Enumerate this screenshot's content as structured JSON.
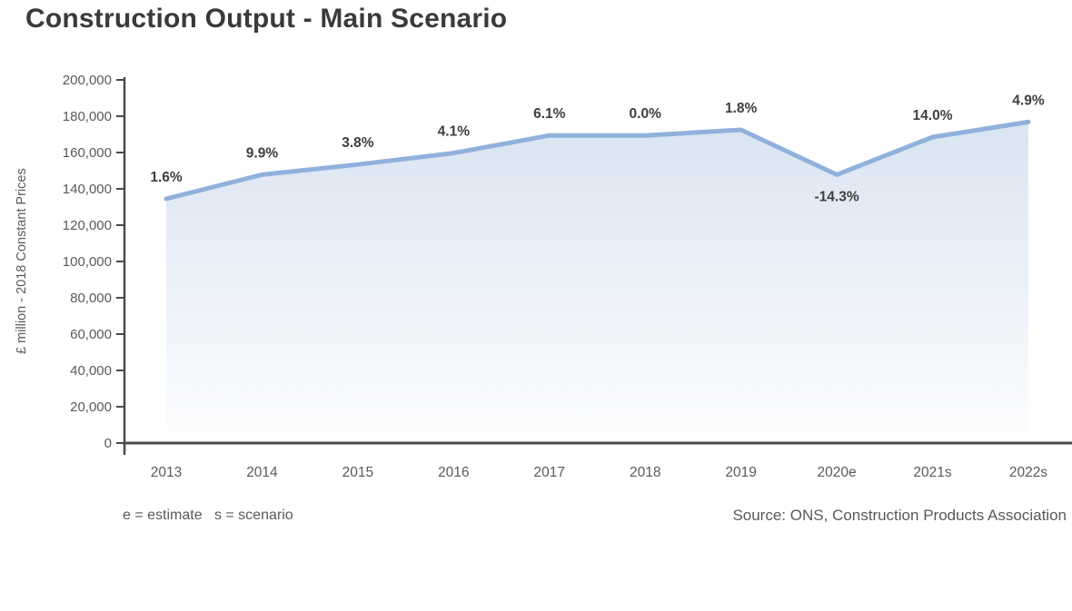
{
  "title": "Construction Output - Main Scenario",
  "footer": {
    "note": "e = estimate   s = scenario",
    "source": "Source: ONS, Construction Products Association"
  },
  "chart_data": {
    "type": "area",
    "title": "Construction Output - Main Scenario",
    "xlabel": "",
    "ylabel": "£ million - 2018 Constant Prices",
    "categories": [
      "2013",
      "2014",
      "2015",
      "2016",
      "2017",
      "2018",
      "2019",
      "2020e",
      "2021s",
      "2022s"
    ],
    "values": [
      134500,
      147800,
      153400,
      159700,
      169400,
      169400,
      172500,
      147800,
      168500,
      176800
    ],
    "point_labels": [
      "1.6%",
      "9.9%",
      "3.8%",
      "4.1%",
      "6.1%",
      "0.0%",
      "1.8%",
      "-14.3%",
      "14.0%",
      "4.9%"
    ],
    "ylim": [
      0,
      200000
    ],
    "ytick_step": 20000,
    "ytick_labels": [
      "0",
      "20,000",
      "40,000",
      "60,000",
      "80,000",
      "100,000",
      "120,000",
      "140,000",
      "160,000",
      "180,000",
      "200,000"
    ],
    "grid": false,
    "legend": "none",
    "colors": {
      "line": "#90B1DB",
      "fill_top": "#D9E4F2",
      "fill_bottom": "#FDFEFF",
      "axis": "#4A4A4A",
      "tick_text": "#595959",
      "data_label_text": "#3E3E3E",
      "title_text": "#3A3A3A"
    }
  }
}
